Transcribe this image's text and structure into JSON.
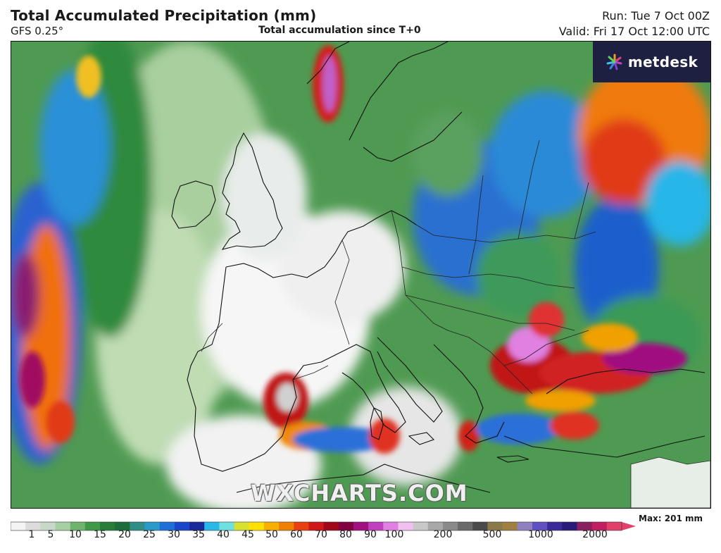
{
  "header": {
    "title": "Total Accumulated Precipitation (mm)",
    "model": "GFS 0.25°",
    "subtitle": "Total accumulation since T+0",
    "run": "Run: Tue 7 Oct 00Z",
    "valid": "Valid: Fri 17 Oct 12:00 UTC"
  },
  "logo": {
    "text": "metdesk",
    "icon": "metdesk-flower-icon"
  },
  "watermark": "WXCHARTS.COM",
  "colorbar": {
    "max_label": "Max: 201 mm",
    "ticks": [
      "1",
      "5",
      "10",
      "15",
      "20",
      "25",
      "30",
      "35",
      "40",
      "45",
      "50",
      "60",
      "70",
      "80",
      "90",
      "100",
      "200",
      "500",
      "1000",
      "2000"
    ],
    "colors": [
      "#f4f4f4",
      "#dcdcdc",
      "#c8d8c8",
      "#a6cfa4",
      "#6fb36c",
      "#3f9a47",
      "#2a7d38",
      "#1d6d3a",
      "#2f8e86",
      "#2a9ac8",
      "#1e6fd8",
      "#1746c8",
      "#1a2a9a",
      "#2ab8e8",
      "#6fe0e0",
      "#d8e030",
      "#ffe000",
      "#f8b000",
      "#f08000",
      "#e84010",
      "#d01818",
      "#a00818",
      "#800040",
      "#a01080",
      "#c040c0",
      "#e080e0",
      "#f0c0f0",
      "#c8c8c8",
      "#a8a8a8",
      "#8a8a8a",
      "#6a6a6a",
      "#4a4a4a",
      "#8a7a4a",
      "#a08040",
      "#9080c0",
      "#6050c0",
      "#3a2a9a",
      "#2a1a7a",
      "#8a2060",
      "#c02060",
      "#e0406a"
    ]
  },
  "map": {
    "region": "Europe",
    "max_value_mm": 201
  }
}
